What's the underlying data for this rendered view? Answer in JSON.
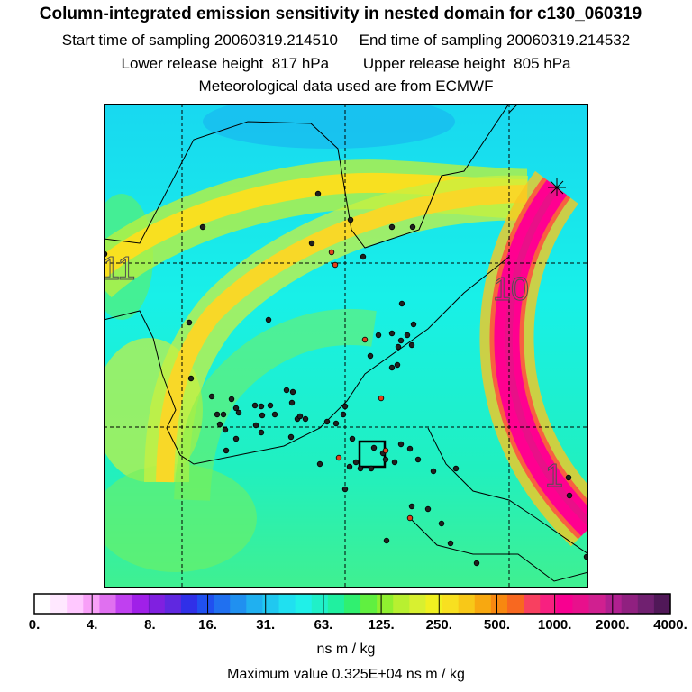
{
  "header": {
    "title": "Column-integrated emission sensitivity in nested domain for c130_060319",
    "start_label": "Start time of sampling 20060319.214510",
    "end_label": "End time of sampling 20060319.214532",
    "lower_label": "Lower release height  817 hPa",
    "upper_label": "Upper release height  805 hPa",
    "met_label": "Meteorological data used are from ECMWF"
  },
  "map": {
    "contour_labels": [
      "11",
      "10",
      "1"
    ],
    "colors": {
      "background": "#18e8f0",
      "band": "#f8e020",
      "plume": "#ff0090"
    }
  },
  "colorbar": {
    "tick_labels": [
      "0.",
      "4.",
      "8.",
      "16.",
      "31.",
      "63.",
      "125.",
      "250.",
      "500.",
      "1000.",
      "2000.",
      "4000."
    ],
    "units": "ns m / kg",
    "max_value_label": "Maximum value  0.325E+04 ns m / kg",
    "colors": [
      "#ffffff",
      "#ffe8ff",
      "#ffc8ff",
      "#f8a0f8",
      "#e070f0",
      "#c040f0",
      "#a020e8",
      "#8020e0",
      "#6028e0",
      "#3030e8",
      "#2050f0",
      "#2070f0",
      "#2090f0",
      "#20b0f0",
      "#20c8f0",
      "#20e0f0",
      "#20f0e8",
      "#20f0c8",
      "#20f0a0",
      "#30f070",
      "#60f040",
      "#90f030",
      "#b8f030",
      "#d8f030",
      "#f0f020",
      "#f8e020",
      "#f8c818",
      "#f8a810",
      "#f88810",
      "#f86820",
      "#f84060",
      "#f82080",
      "#f80090",
      "#e8108c",
      "#d02090",
      "#b02090",
      "#902080",
      "#702070",
      "#501858"
    ]
  }
}
